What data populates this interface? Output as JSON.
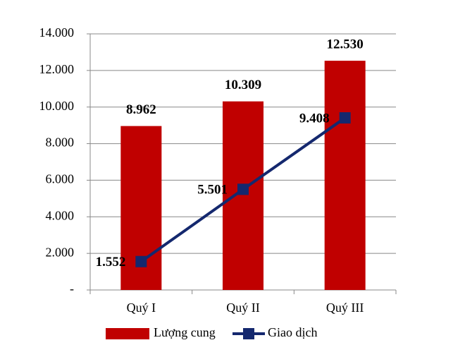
{
  "chart_data": {
    "type": "bar",
    "categories": [
      "Quý I",
      "Quý II",
      "Quý III"
    ],
    "series": [
      {
        "name": "Lượng cung",
        "type": "bar",
        "color": "#c00000",
        "values": [
          8962,
          10309,
          12530
        ],
        "value_labels": [
          "8.962",
          "10.309",
          "12.530"
        ]
      },
      {
        "name": "Giao dịch",
        "type": "line",
        "color": "#14286e",
        "values": [
          1552,
          5501,
          9408
        ],
        "value_labels": [
          "1.552",
          "5.501",
          "9.408"
        ]
      }
    ],
    "ylim": [
      0,
      14000
    ],
    "yticks": [
      {
        "value": 0,
        "label": "-"
      },
      {
        "value": 2000,
        "label": "2.000"
      },
      {
        "value": 4000,
        "label": "4.000"
      },
      {
        "value": 6000,
        "label": "6.000"
      },
      {
        "value": 8000,
        "label": "8.000"
      },
      {
        "value": 10000,
        "label": "10.000"
      },
      {
        "value": 12000,
        "label": "12.000"
      },
      {
        "value": 14000,
        "label": "14.000"
      }
    ],
    "grid": true,
    "legend": "bottom"
  }
}
